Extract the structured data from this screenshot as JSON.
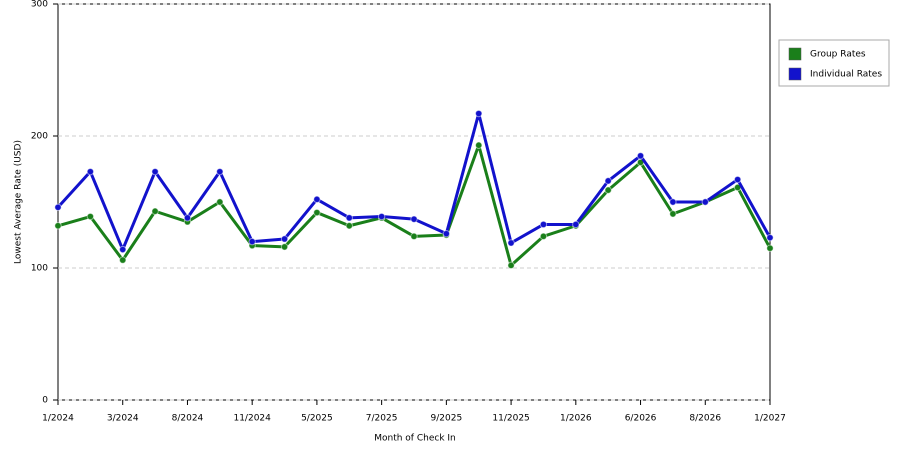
{
  "chart_data": {
    "type": "line",
    "x_label": "Month of Check In",
    "y_label": "Lowest Average Rate (USD)",
    "categories": [
      "1/2024",
      null,
      "3/2024",
      null,
      "8/2024",
      null,
      "11/2024",
      null,
      "5/2025",
      null,
      "7/2025",
      null,
      "9/2025",
      null,
      "11/2025",
      null,
      "1/2026",
      null,
      "6/2026",
      null,
      "8/2026",
      null,
      "1/2027"
    ],
    "series": [
      {
        "name": "Group Rates",
        "color": "#1a7f1a",
        "values": [
          132,
          139,
          106,
          143,
          135,
          150,
          117,
          116,
          142,
          132,
          138,
          124,
          125,
          193,
          102,
          124,
          132,
          159,
          180,
          141,
          150,
          161,
          115
        ]
      },
      {
        "name": "Individual Rates",
        "color": "#1212cc",
        "values": [
          146,
          173,
          114,
          173,
          138,
          173,
          120,
          122,
          152,
          138,
          139,
          137,
          126,
          217,
          119,
          133,
          133,
          166,
          185,
          150,
          150,
          167,
          123
        ]
      }
    ],
    "ylim": [
      0,
      300
    ],
    "yticks": [
      0,
      100,
      200,
      300
    ],
    "grid": true,
    "legend": "right"
  }
}
